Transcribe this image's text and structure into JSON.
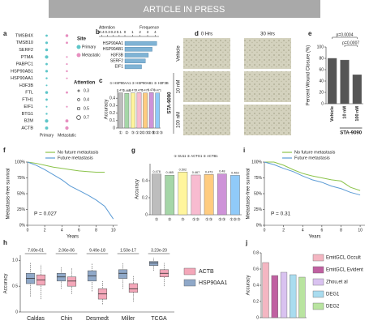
{
  "header": {
    "title": "ARTICLE IN PRESS"
  },
  "panel_d": {
    "label": "d",
    "columns": [
      "0 Hrs",
      "30 Hrs"
    ],
    "rows": [
      "Vehicle",
      "10 nM",
      "100 nM"
    ],
    "group": "STA-9090"
  },
  "chart_data": [
    {
      "type": "dot",
      "label": "a",
      "categories": [
        "TMSB4X",
        "TMSB10",
        "SERF2",
        "PTMA",
        "PABPC1",
        "HSP90AB1",
        "HSP90AA1",
        "H3F3B",
        "FTL",
        "FTH1",
        "EIF1",
        "BTG1",
        "B2M",
        "ACTB"
      ],
      "series": [
        {
          "name": "Primary",
          "color": "#5ec6c9",
          "values": [
            0.4,
            0.45,
            0.5,
            0.6,
            0.4,
            0.45,
            0.35,
            0.3,
            0.5,
            0.4,
            0.3,
            0.35,
            0.6,
            0.55
          ]
        },
        {
          "name": "Metastatic",
          "color": "#e78fc0",
          "values": [
            0.5,
            0.4,
            null,
            0.3,
            0.3,
            0.35,
            0.3,
            null,
            0.4,
            null,
            0.3,
            null,
            0.55,
            0.6
          ]
        }
      ],
      "legend_title": "Site",
      "size_title": "Attention",
      "size_ticks": [
        0.3,
        0.4,
        0.5,
        0.7
      ]
    },
    {
      "type": "hbar",
      "label": "b",
      "categories": [
        "HSP90AA1",
        "HSP90AB1",
        "H3F3B",
        "SERF2",
        "EIF1"
      ],
      "values": [
        4.2,
        3.6,
        3.1,
        2.7,
        2.2
      ],
      "color": "#7fb3d5",
      "xlabel": "Attention",
      "xlim": [
        0.45,
        0
      ],
      "xticks": [
        0.4,
        0.3,
        0.2,
        0.1,
        0
      ],
      "x2label": "Frequence",
      "x2lim": [
        0,
        4.5
      ],
      "x2ticks": [
        1,
        2,
        3,
        4
      ]
    },
    {
      "type": "bar",
      "label": "c",
      "legend_text": "① HSP90AA1 ② HSP90AB1 ③ H3F3B",
      "ylabel": "Accuracy",
      "categories": [
        "①",
        "②",
        "③",
        "①②",
        "①③",
        "②③",
        "①②③"
      ],
      "values": [
        0.472,
        0.465,
        0.472,
        0.475,
        0.471,
        0.476,
        0.471
      ],
      "colors": [
        "#bdbdbd",
        "#a5d6a7",
        "#fff59d",
        "#f8bbd0",
        "#ffcc80",
        "#ce93d8",
        "#90caf9"
      ],
      "data_labels": true,
      "ylim": [
        0,
        0.5
      ],
      "yticks": [
        0,
        0.1,
        0.2,
        0.3,
        0.4
      ]
    },
    {
      "type": "bar",
      "label": "e",
      "ylabel": "Percent Wound Closure (%)",
      "categories": [
        "Vehicle",
        "10 nM",
        "100 nM"
      ],
      "values": [
        80,
        77,
        51
      ],
      "color": "#555555",
      "ylim": [
        0,
        100
      ],
      "yticks": [
        0,
        20,
        40,
        60,
        80,
        100
      ],
      "group_label": "STA-9090",
      "annotations": [
        "p=0.0004",
        "p=0.0007"
      ]
    },
    {
      "type": "line",
      "label": "f",
      "xlabel": "Years",
      "ylabel": "Metastasis-free survival",
      "x": [
        0,
        1,
        2,
        3,
        4,
        5,
        6,
        7,
        8,
        9,
        10
      ],
      "series": [
        {
          "name": "No future metastasis",
          "color": "#8bc34a",
          "values": [
            100,
            98,
            95,
            92,
            90,
            88,
            86,
            85,
            84,
            84,
            null
          ]
        },
        {
          "name": "Future metastasis",
          "color": "#5b9bd5",
          "values": [
            100,
            95,
            88,
            80,
            72,
            62,
            55,
            48,
            40,
            30,
            10
          ]
        }
      ],
      "xlim": [
        0,
        10.5
      ],
      "xticks": [
        0,
        2,
        4,
        6,
        8,
        10
      ],
      "ylim": [
        0,
        100
      ],
      "yticks": [
        {
          "value": 0,
          "label": "0%"
        },
        {
          "value": 25,
          "label": "25%"
        },
        {
          "value": 50,
          "label": "50%"
        },
        {
          "value": 75,
          "label": "75%"
        },
        {
          "value": 100,
          "label": "100%"
        }
      ],
      "annotation": "P = 0.027"
    },
    {
      "type": "bar",
      "label": "g",
      "legend_text": "① SU11 ② ACTG1 ③ ACTB1",
      "ylabel": "Accuracy",
      "categories": [
        "①",
        "②",
        "③",
        "①②",
        "①③",
        "②③",
        "①②③"
      ],
      "values": [
        0.478,
        0.465,
        0.502,
        0.467,
        0.473,
        0.48,
        0.463
      ],
      "colors": [
        "#bdbdbd",
        "#a5d6a7",
        "#fff59d",
        "#f8bbd0",
        "#ffcc80",
        "#ce93d8",
        "#90caf9"
      ],
      "data_labels": true,
      "ylim": [
        0,
        0.6
      ],
      "yticks": [
        0,
        0.2,
        0.4
      ]
    },
    {
      "type": "line",
      "label": "i",
      "xlabel": "Years",
      "ylabel": "Metastasis-free survival",
      "x": [
        0,
        1,
        2,
        3,
        4,
        5,
        6,
        7,
        8,
        9,
        10
      ],
      "series": [
        {
          "name": "No future metastasis",
          "color": "#8bc34a",
          "values": [
            100,
            100,
            95,
            88,
            82,
            78,
            75,
            72,
            70,
            60,
            55
          ]
        },
        {
          "name": "Future metastasis",
          "color": "#5b9bd5",
          "values": [
            100,
            96,
            90,
            85,
            78,
            72,
            68,
            62,
            58,
            52,
            48
          ]
        }
      ],
      "xlim": [
        0,
        10.5
      ],
      "xticks": [
        0,
        2,
        4,
        6,
        8,
        10
      ],
      "ylim": [
        0,
        100
      ],
      "yticks": [
        {
          "value": 0,
          "label": "0%"
        },
        {
          "value": 25,
          "label": "25%"
        },
        {
          "value": 50,
          "label": "50%"
        },
        {
          "value": 75,
          "label": "75%"
        },
        {
          "value": 100,
          "label": "100%"
        }
      ],
      "annotation": "P = 0.31"
    },
    {
      "type": "box",
      "label": "h",
      "ylabel": "Accuracy",
      "categories": [
        "Caldas",
        "Chin",
        "Desmedt",
        "Miller",
        "TCGA"
      ],
      "annotations": [
        "7.69e-01",
        "2.06e-06",
        "9.49e-18",
        "1.50e-17",
        "3.23e-20"
      ],
      "series": [
        {
          "name": "ACTB",
          "color": "#f4a7b9",
          "values": [
            [
              0.25,
              0.52,
              0.62,
              0.72,
              0.92
            ],
            [
              0.35,
              0.5,
              0.6,
              0.68,
              0.85
            ],
            [
              0.15,
              0.25,
              0.35,
              0.45,
              0.6
            ],
            [
              0.2,
              0.38,
              0.45,
              0.55,
              0.7
            ],
            [
              0.5,
              0.68,
              0.75,
              0.82,
              0.95
            ]
          ]
        },
        {
          "name": "HSP90AA1",
          "color": "#8fa8c8",
          "values": [
            [
              0.3,
              0.55,
              0.65,
              0.75,
              0.95
            ],
            [
              0.45,
              0.6,
              0.68,
              0.75,
              0.88
            ],
            [
              0.4,
              0.6,
              0.7,
              0.8,
              0.95
            ],
            [
              0.45,
              0.65,
              0.75,
              0.82,
              0.95
            ],
            [
              0.8,
              0.9,
              0.95,
              0.98,
              1.05
            ]
          ]
        }
      ],
      "ylim": [
        0,
        1.1
      ],
      "yticks": [
        0,
        0.5,
        {
          "value": 1,
          "label": "1.0"
        }
      ]
    },
    {
      "type": "bar",
      "label": "j",
      "ylabel": "Accuracy",
      "categories": [
        "EmitGCL Occult",
        "EmitGCL Evident",
        "Zhou,et al",
        "DEG1",
        "DEG2"
      ],
      "values": [
        0.68,
        0.52,
        0.56,
        0.53,
        0.5
      ],
      "colors": [
        "#f4b6c2",
        "#c060a1",
        "#d9c2f0",
        "#a9dcef",
        "#b9e4a0"
      ],
      "ylim": [
        0,
        0.8
      ],
      "yticks": [
        0,
        0.2,
        0.4,
        0.6,
        0.8
      ],
      "legend": "right"
    }
  ]
}
